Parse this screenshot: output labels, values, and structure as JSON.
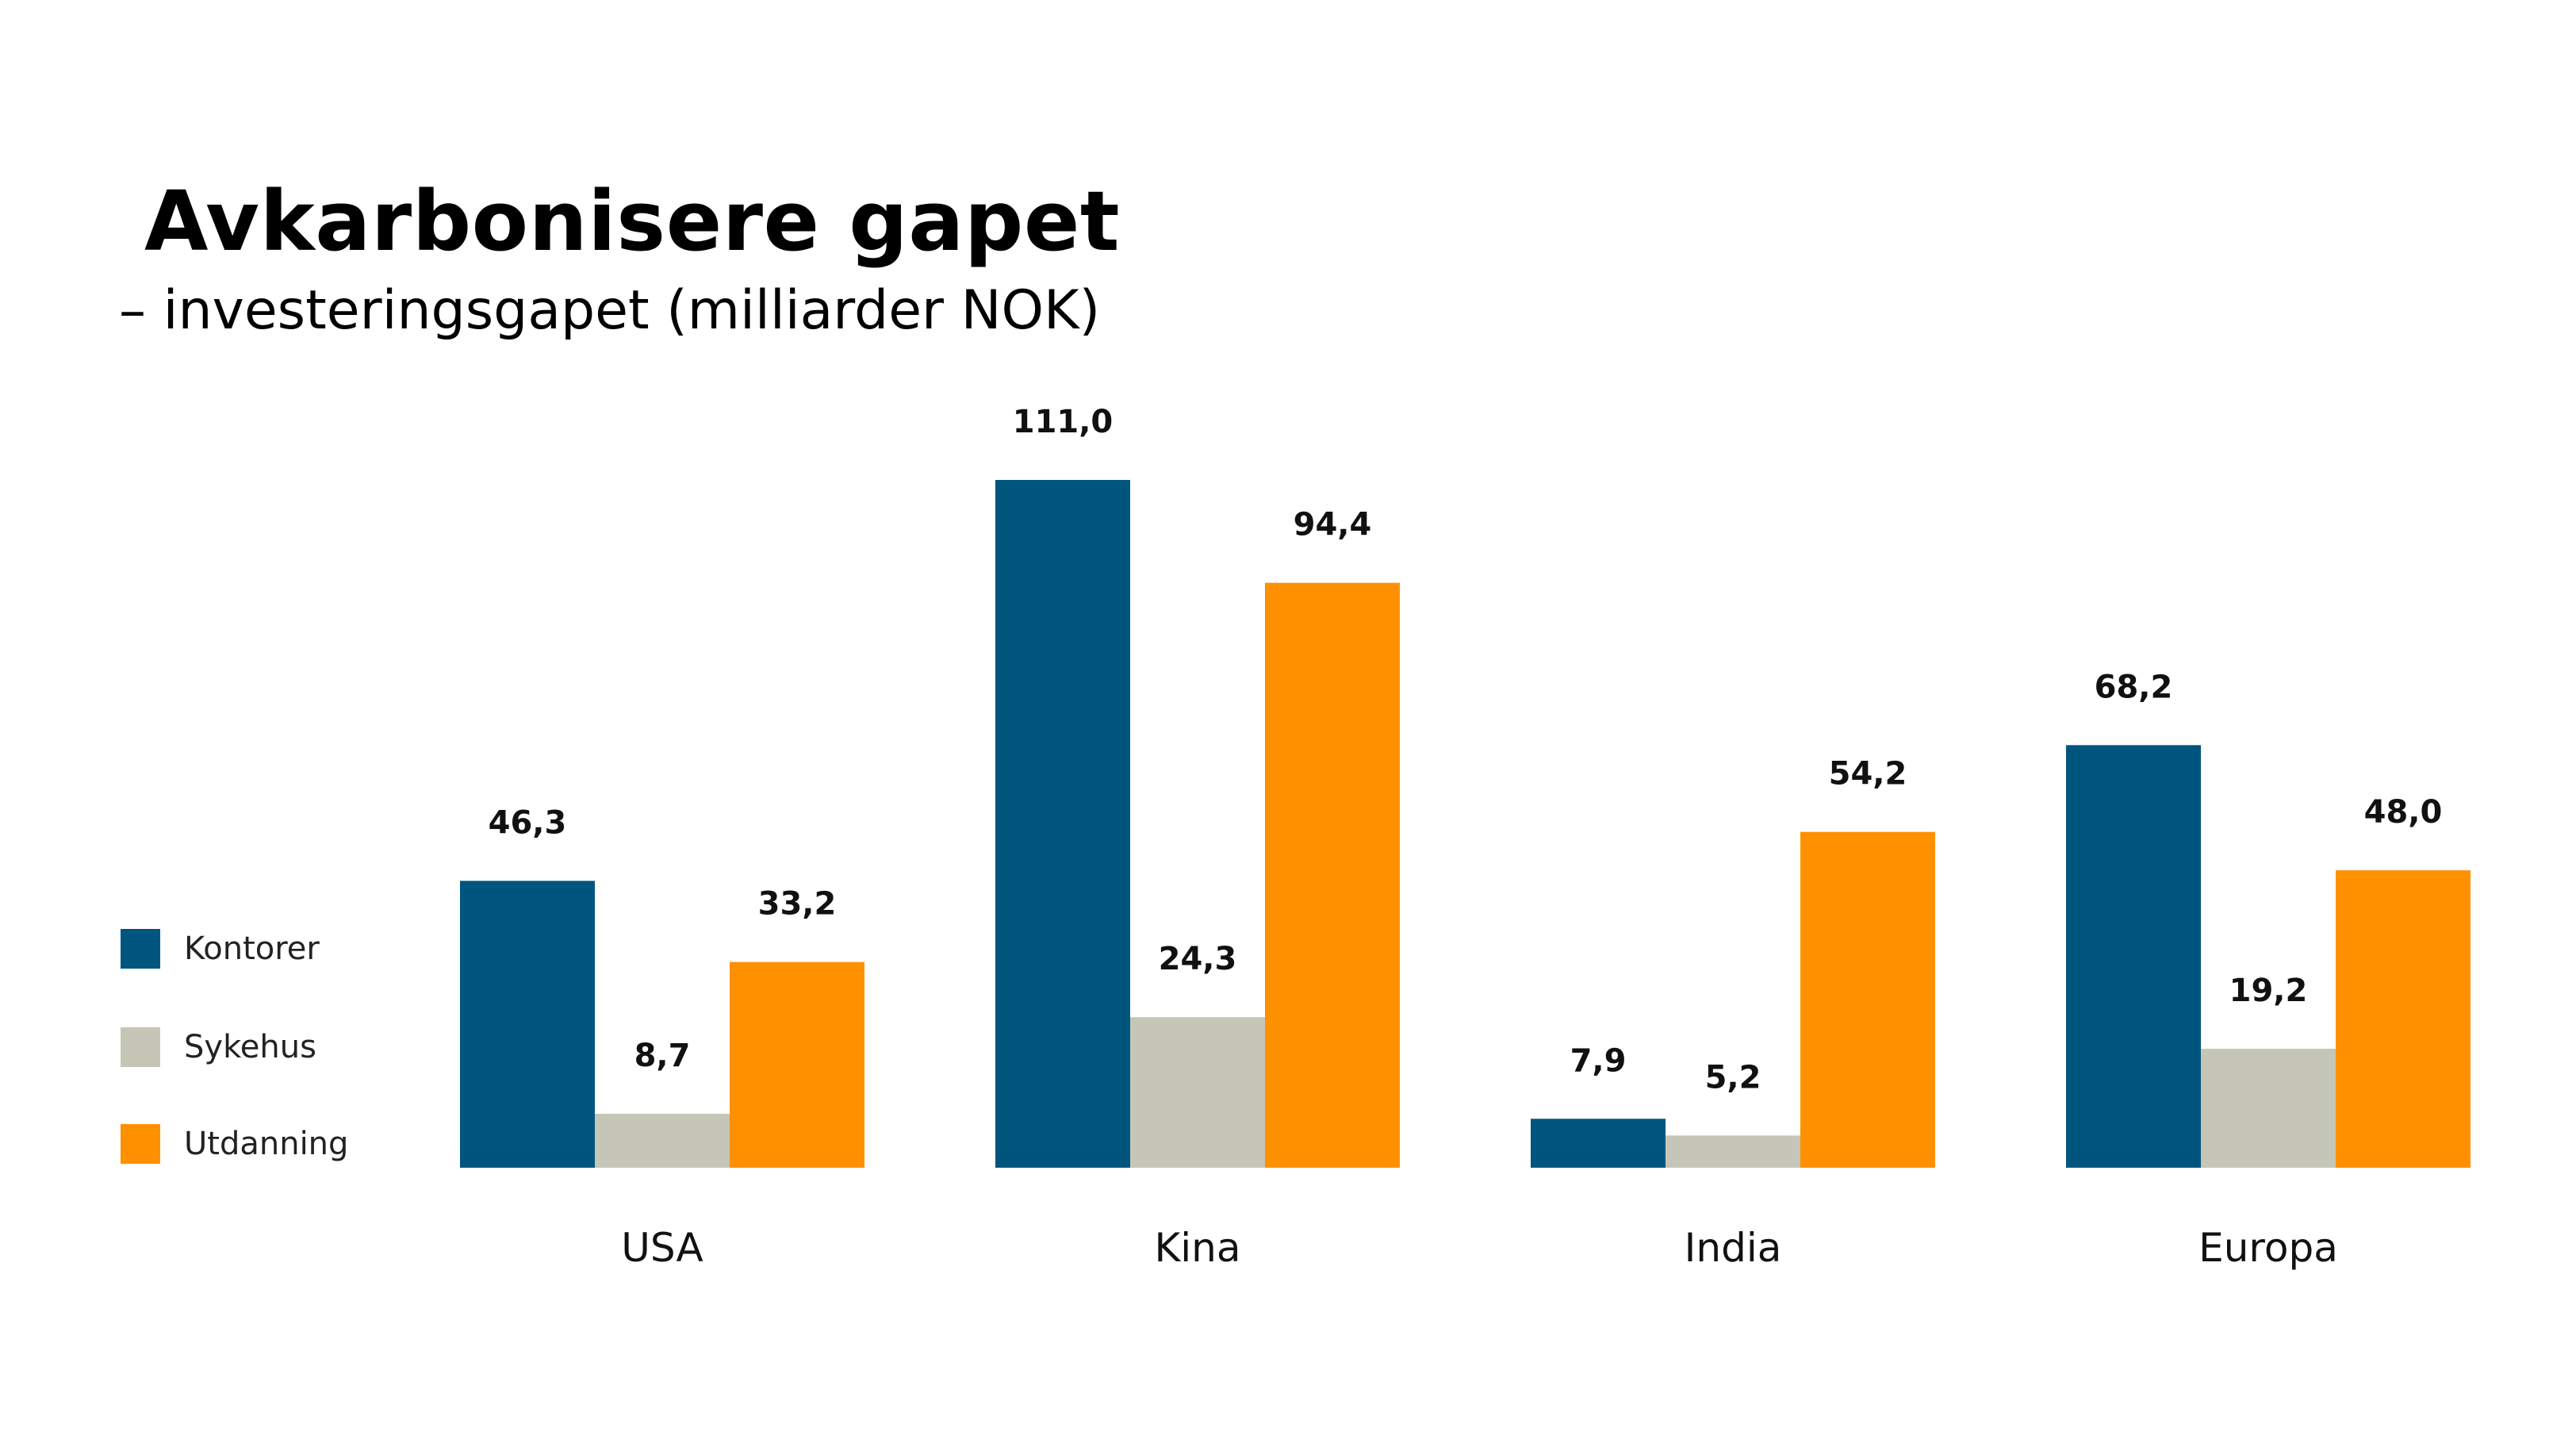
{
  "chart_data": {
    "type": "bar",
    "title": "Avkarbonisere gapet",
    "subtitle": "– investeringsgapet (milliarder NOK)",
    "categories": [
      "USA",
      "Kina",
      "India",
      "Europa"
    ],
    "series": [
      {
        "name": "Kontorer",
        "color": "#00557f",
        "values": [
          46.3,
          111.0,
          7.9,
          68.2
        ],
        "labels": [
          "46,3",
          "111,0",
          "7,9",
          "68,2"
        ]
      },
      {
        "name": "Sykehus",
        "color": "#c5c6b7",
        "values": [
          8.7,
          24.3,
          5.2,
          19.2
        ],
        "labels": [
          "8,7",
          "24,3",
          "5,2",
          "19,2"
        ]
      },
      {
        "name": "Utdanning",
        "color": "#ff9000",
        "values": [
          33.2,
          94.4,
          54.2,
          48.0
        ],
        "labels": [
          "33,2",
          "94,4",
          "54,2",
          "48,0"
        ]
      }
    ],
    "legend_position": "left",
    "grid": false,
    "ylim": [
      0,
      111.0
    ]
  }
}
